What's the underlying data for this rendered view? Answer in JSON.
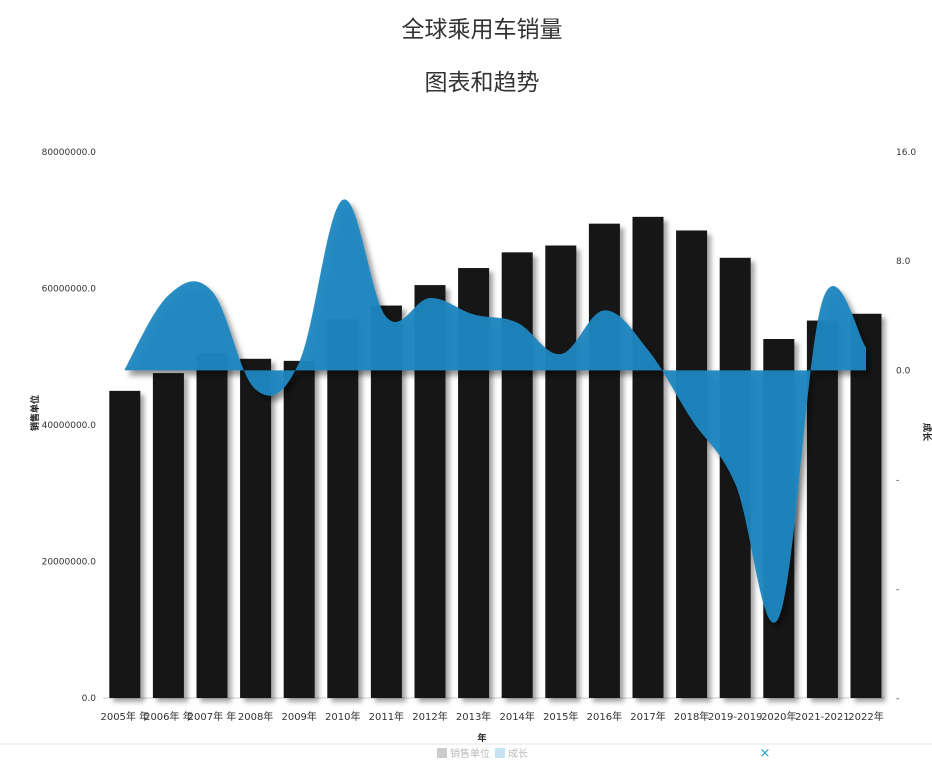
{
  "chart_data": {
    "type": "bar",
    "title": "全球乘用车销量",
    "subtitle": "图表和趋势",
    "xlabel": "年",
    "ylabel": "销售单位",
    "y2label": "成长",
    "categories": [
      "2005年 年",
      "2006年 年",
      "2007年 年",
      "2008年",
      "2009年",
      "2010年",
      "2011年",
      "2012年",
      "2013年",
      "2014年",
      "2015年",
      "2016年",
      "2017年",
      "2018年",
      "2019-2019",
      "2020年",
      "2021-2021",
      "2022年"
    ],
    "ylim": [
      0,
      80000000
    ],
    "y_ticks": [
      "0.0",
      "20000000.0",
      "40000000.0",
      "60000000.0",
      "80000000.0"
    ],
    "y2lim": [
      -24,
      16
    ],
    "y2_ticks": [
      "-",
      "-",
      "-",
      "0.0",
      "8.0",
      "16.0"
    ],
    "grid": false,
    "legend_position": "bottom",
    "series": [
      {
        "name": "销售单位",
        "kind": "bar",
        "color": "#141414",
        "values": [
          45000000,
          47600000,
          50500000,
          49700000,
          49400000,
          55500000,
          57500000,
          60500000,
          63000000,
          65300000,
          66300000,
          69500000,
          70500000,
          68500000,
          64500000,
          52600000,
          55300000,
          56300000
        ]
      },
      {
        "name": "成长",
        "kind": "area",
        "color": "#1d86c0",
        "values": [
          0.1,
          5.5,
          5.8,
          -1.4,
          0.6,
          12.5,
          3.9,
          5.3,
          4.1,
          3.5,
          1.2,
          4.4,
          1.5,
          -3.6,
          -8.3,
          -18.1,
          5.1,
          1.7
        ]
      }
    ]
  },
  "legend": {
    "items": [
      {
        "label": "销售单位",
        "color": "#cccccc"
      },
      {
        "label": "成长",
        "color": "#c5e3f2"
      }
    ],
    "close_symbol": "×"
  }
}
